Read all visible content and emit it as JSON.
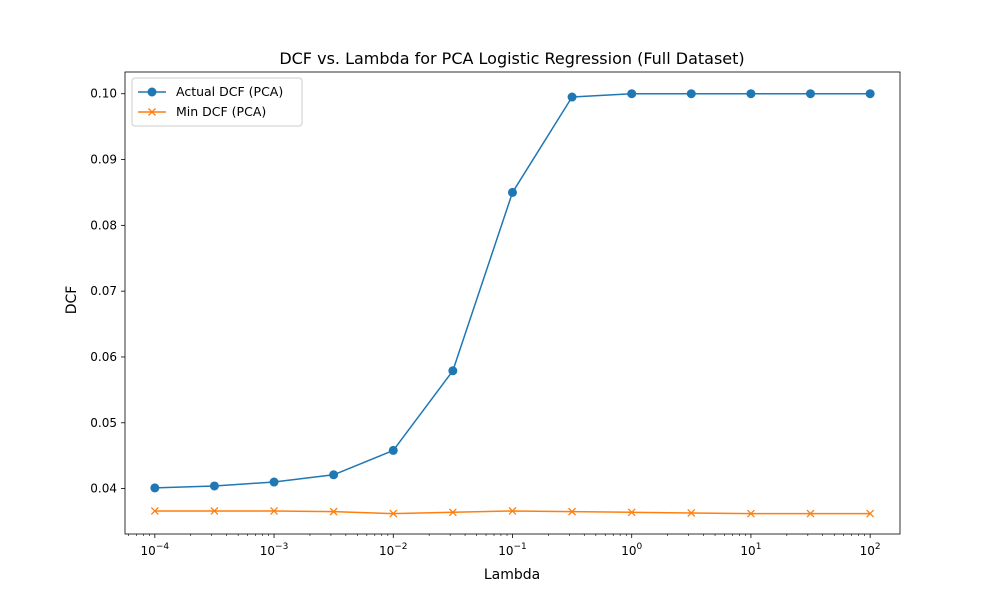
{
  "chart_data": {
    "type": "line",
    "title": "DCF vs. Lambda for PCA Logistic Regression (Full Dataset)",
    "xlabel": "Lambda",
    "ylabel": "DCF",
    "xscale": "log",
    "xlim": [
      5.62e-05,
      178
    ],
    "ylim": [
      0.0331,
      0.1033
    ],
    "x": [
      0.0001,
      0.000316,
      0.001,
      0.00316,
      0.01,
      0.0316,
      0.1,
      0.316,
      1,
      3.16,
      10,
      31.6,
      100
    ],
    "x_ticks": [
      {
        "value": 0.0001,
        "base": "10",
        "exp": "−4"
      },
      {
        "value": 0.001,
        "base": "10",
        "exp": "−3"
      },
      {
        "value": 0.01,
        "base": "10",
        "exp": "−2"
      },
      {
        "value": 0.1,
        "base": "10",
        "exp": "−1"
      },
      {
        "value": 1,
        "base": "10",
        "exp": "0"
      },
      {
        "value": 10,
        "base": "10",
        "exp": "1"
      },
      {
        "value": 100,
        "base": "10",
        "exp": "2"
      }
    ],
    "y_ticks": [
      {
        "value": 0.04,
        "label": "0.04"
      },
      {
        "value": 0.05,
        "label": "0.05"
      },
      {
        "value": 0.06,
        "label": "0.06"
      },
      {
        "value": 0.07,
        "label": "0.07"
      },
      {
        "value": 0.08,
        "label": "0.08"
      },
      {
        "value": 0.09,
        "label": "0.09"
      },
      {
        "value": 0.1,
        "label": "0.10"
      }
    ],
    "grid": false,
    "legend_position": "top-left",
    "series": [
      {
        "name": "Actual DCF (PCA)",
        "color": "#1f77b4",
        "marker": "circle",
        "values": [
          0.0401,
          0.0404,
          0.041,
          0.0421,
          0.0458,
          0.0579,
          0.085,
          0.0995,
          0.1,
          0.1,
          0.1,
          0.1,
          0.1
        ]
      },
      {
        "name": "Min DCF (PCA)",
        "color": "#ff7f0e",
        "marker": "x",
        "values": [
          0.0366,
          0.0366,
          0.0366,
          0.0365,
          0.0362,
          0.0364,
          0.0366,
          0.0365,
          0.0364,
          0.0363,
          0.0362,
          0.0362,
          0.0362
        ]
      }
    ]
  }
}
